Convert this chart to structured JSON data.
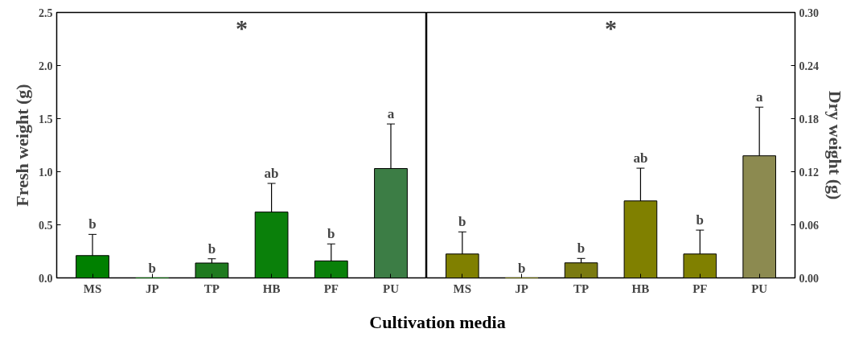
{
  "chart_data": [
    {
      "type": "bar",
      "xlabel": "Cultivation media",
      "ylabel": "Fresh weight (g)",
      "categories": [
        "MS",
        "JP",
        "TP",
        "HB",
        "PF",
        "PU"
      ],
      "values": [
        0.21,
        0,
        0.14,
        0.62,
        0.16,
        1.03
      ],
      "errors": [
        0.2,
        null,
        0.04,
        0.27,
        0.16,
        0.42
      ],
      "colors": [
        "#008000",
        "#008000",
        "#1f7a1f",
        "#0a800a",
        "#0a800a",
        "#3c7d45"
      ],
      "ylim": [
        0,
        2.5
      ],
      "yticks": [
        {
          "value": 0,
          "label": "0.0"
        },
        {
          "value": 0.5,
          "label": "0.5"
        },
        {
          "value": 1,
          "label": "1.0"
        },
        {
          "value": 1.5,
          "label": "1.5"
        },
        {
          "value": 2,
          "label": "2.0"
        },
        {
          "value": 2.5,
          "label": "2.5"
        }
      ],
      "annotations": [
        "*",
        {
          "text": "b",
          "x": "MS",
          "y": 0.41
        },
        {
          "text": "b",
          "x": "JP",
          "y": 0
        },
        {
          "text": "b",
          "x": "TP",
          "y": 0.18
        },
        {
          "text": "ab",
          "x": "HB",
          "y": 0.89
        },
        {
          "text": "b",
          "x": "PF",
          "y": 0.32
        },
        {
          "text": "a",
          "x": "PU",
          "y": 1.45
        }
      ],
      "grid": false
    },
    {
      "type": "bar",
      "ylabel": "Dry weight (g)",
      "categories": [
        "MS",
        "JP",
        "TP",
        "HB",
        "PF",
        "PU"
      ],
      "values": [
        0.027,
        0,
        0.017,
        0.087,
        0.027,
        0.138
      ],
      "errors": [
        0.025,
        null,
        0.005,
        0.037,
        0.027,
        0.055
      ],
      "colors": [
        "#808000",
        "#808000",
        "#7a7a10",
        "#808000",
        "#808000",
        "#8c8a50"
      ],
      "ylim": [
        0,
        0.3
      ],
      "yticks": [
        {
          "value": 0,
          "label": "0.00"
        },
        {
          "value": 0.06,
          "label": "0.06"
        },
        {
          "value": 0.12,
          "label": "0.12"
        },
        {
          "value": 0.18,
          "label": "0.18"
        },
        {
          "value": 0.24,
          "label": "0.24"
        },
        {
          "value": 0.3,
          "label": "0.30"
        }
      ],
      "annotations": [
        "*",
        {
          "text": "b",
          "x": "MS",
          "y": 0.052
        },
        {
          "text": "b",
          "x": "JP",
          "y": 0
        },
        {
          "text": "b",
          "x": "TP",
          "y": 0.022
        },
        {
          "text": "ab",
          "x": "HB",
          "y": 0.124
        },
        {
          "text": "b",
          "x": "PF",
          "y": 0.054
        },
        {
          "text": "a",
          "x": "PU",
          "y": 0.193
        }
      ],
      "grid": false
    }
  ]
}
